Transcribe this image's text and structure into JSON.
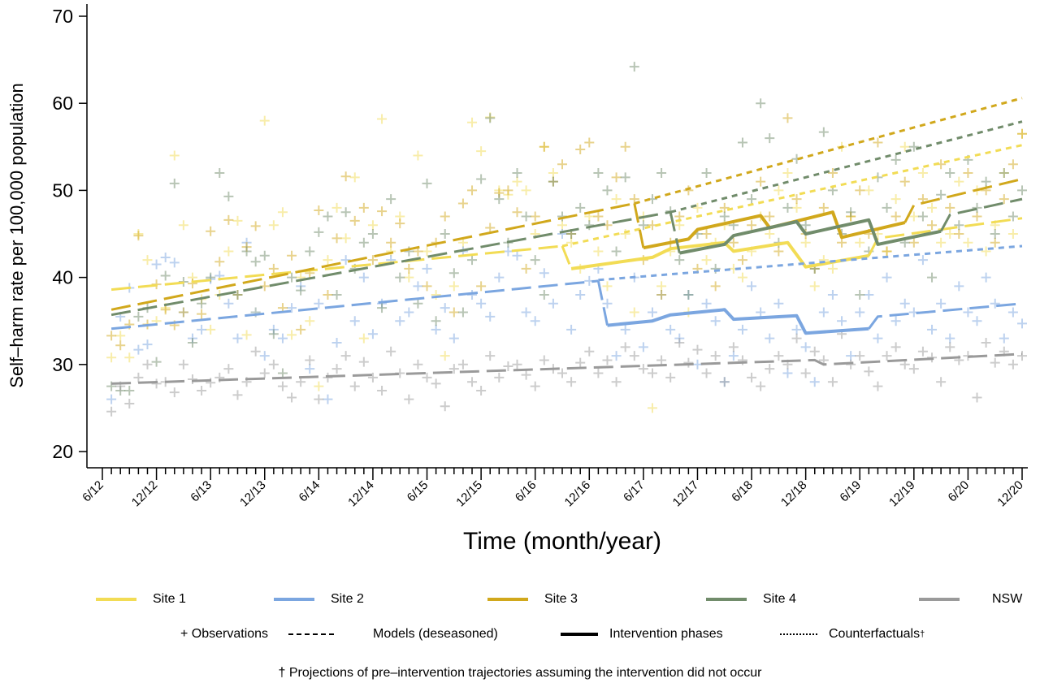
{
  "chart_data": {
    "type": "line",
    "xlabel": "Time (month/year)",
    "ylabel": "Self–harm rate per 100,000 population",
    "ylim": [
      20,
      70
    ],
    "xlim": [
      "2012-06",
      "2020-12"
    ],
    "yticks": [
      "20",
      "30",
      "40",
      "50",
      "60",
      "70"
    ],
    "xticks": [
      "6/12",
      "12/12",
      "6/13",
      "12/13",
      "6/14",
      "12/14",
      "6/15",
      "12/15",
      "6/16",
      "12/16",
      "6/17",
      "12/17",
      "6/18",
      "12/18",
      "6/19",
      "12/19",
      "6/20",
      "12/20"
    ],
    "minor_ticks": "monthly",
    "grid": false,
    "legend_position": "bottom",
    "series": [
      {
        "name": "Site 1",
        "color": "#F2DC55",
        "observations": {
          "start": "2012-07",
          "values": [
            30.8,
            33.3,
            30.8,
            45,
            42,
            35,
            36.5,
            54,
            46,
            40,
            37.5,
            34,
            38,
            43,
            46.5,
            33.4,
            36,
            58,
            46,
            47.5,
            33.4,
            40,
            35,
            27.5,
            42,
            48,
            44.5,
            51.5,
            33,
            46,
            58.2,
            43,
            47,
            40,
            54,
            43,
            38,
            31,
            39,
            44,
            57.8,
            54.5,
            58.4,
            50,
            49.5,
            51,
            50,
            45,
            55,
            52,
            46,
            44,
            41,
            47,
            43,
            39,
            49,
            45,
            36,
            47,
            25,
            39,
            43,
            46,
            36,
            48,
            42,
            44,
            46,
            41,
            40,
            43,
            47,
            45,
            50,
            52,
            48,
            44,
            39,
            42,
            41,
            55,
            47,
            44,
            50,
            45,
            43,
            49,
            55,
            47,
            52,
            48,
            44,
            45,
            51,
            44,
            50,
            43,
            46,
            52,
            45,
            56.5
          ]
        },
        "model_pre": [
          [
            "2012-07",
            38.6
          ],
          [
            "2016-09",
            43.6
          ]
        ],
        "intervention": [
          [
            "2016-10",
            41.0
          ],
          [
            "2017-07",
            42.3
          ],
          [
            "2017-09",
            43.3
          ],
          [
            "2018-03",
            44.0
          ],
          [
            "2018-04",
            43.0
          ],
          [
            "2018-10",
            44.0
          ],
          [
            "2018-12",
            41.2
          ],
          [
            "2019-07",
            42.5
          ]
        ],
        "model_post": [
          [
            "2019-08",
            44.5
          ],
          [
            "2020-12",
            46.8
          ]
        ],
        "counterfactual": [
          [
            "2016-09",
            43.6
          ],
          [
            "2020-12",
            55.2
          ]
        ]
      },
      {
        "name": "Site 2",
        "color": "#7BA6E0",
        "observations": {
          "start": "2012-07",
          "values": [
            26,
            35.5,
            38.8,
            31.7,
            32.3,
            41.5,
            42.3,
            41.7,
            36,
            33,
            34,
            39.8,
            40.2,
            37,
            33,
            44,
            36,
            31,
            34,
            33,
            36.5,
            39,
            29.5,
            37,
            26,
            32.5,
            42,
            35,
            40,
            33.5,
            37,
            42,
            35,
            36,
            39,
            41,
            34,
            36.5,
            33,
            43,
            38,
            37,
            35.5,
            40,
            43,
            42.5,
            36,
            35,
            40.5,
            37,
            45,
            34,
            38,
            39.6,
            41,
            37,
            31,
            34,
            40,
            32,
            36,
            38,
            34,
            33,
            38,
            30,
            37,
            35,
            28,
            31,
            34,
            39,
            36,
            33,
            37,
            29,
            34,
            32,
            28,
            36,
            38,
            35,
            31,
            36,
            38,
            33,
            40,
            35,
            37,
            36,
            42,
            34,
            37,
            33,
            39,
            36,
            35,
            40,
            37,
            33,
            36,
            34.7
          ]
        },
        "model_pre": [
          [
            "2012-07",
            34.1
          ],
          [
            "2017-01",
            39.6
          ]
        ],
        "intervention": [
          [
            "2017-02",
            34.5
          ],
          [
            "2017-07",
            35.0
          ],
          [
            "2017-09",
            35.7
          ],
          [
            "2018-03",
            36.3
          ],
          [
            "2018-04",
            35.2
          ],
          [
            "2018-11",
            35.6
          ],
          [
            "2018-12",
            33.6
          ],
          [
            "2019-07",
            34.1
          ]
        ],
        "model_post": [
          [
            "2019-08",
            35.5
          ],
          [
            "2020-12",
            37.0
          ]
        ],
        "counterfactual": [
          [
            "2017-01",
            39.7
          ],
          [
            "2020-12",
            43.6
          ]
        ]
      },
      {
        "name": "Site 3",
        "color": "#D1A81C",
        "observations": {
          "start": "2012-07",
          "values": [
            33.3,
            32.2,
            34.6,
            44.8,
            34.6,
            39.2,
            36.3,
            34.5,
            36,
            39.3,
            35.8,
            45.3,
            41.8,
            46.6,
            38,
            43.5,
            45.9,
            39,
            41,
            36.5,
            42.5,
            34,
            40.5,
            47.7,
            38,
            44.5,
            51.6,
            46.5,
            48,
            42,
            47.6,
            44,
            46.2,
            41,
            43,
            39,
            44,
            47,
            36,
            48.5,
            50,
            39,
            45.7,
            49.7,
            50,
            47.5,
            41,
            47,
            55,
            51,
            53,
            45,
            54.7,
            55.5,
            47,
            46,
            51.5,
            55,
            49,
            42,
            46,
            38,
            44,
            47,
            50,
            41,
            45,
            39,
            48,
            44,
            42,
            46,
            51,
            47,
            43,
            58.3,
            49,
            45,
            41,
            48,
            52,
            44,
            47,
            50,
            45,
            55.5,
            43,
            47,
            51,
            44,
            49,
            46,
            53,
            48,
            45,
            52,
            47,
            50,
            44,
            49,
            53,
            56.5
          ]
        },
        "model_pre": [
          [
            "2012-07",
            36.3
          ],
          [
            "2017-05",
            48.5
          ]
        ],
        "intervention": [
          [
            "2017-06",
            43.4
          ],
          [
            "2017-11",
            44.4
          ],
          [
            "2017-12",
            45.5
          ],
          [
            "2018-07",
            47.1
          ],
          [
            "2018-08",
            45.7
          ],
          [
            "2019-03",
            47.5
          ],
          [
            "2019-04",
            44.6
          ],
          [
            "2019-11",
            46.3
          ]
        ],
        "model_post": [
          [
            "2019-12",
            48.3
          ],
          [
            "2020-12",
            51.3
          ]
        ],
        "counterfactual": [
          [
            "2017-05",
            48.5
          ],
          [
            "2020-12",
            60.6
          ]
        ]
      },
      {
        "name": "Site 4",
        "color": "#718C6B",
        "observations": {
          "start": "2012-07",
          "values": [
            27.5,
            27,
            27,
            35.5,
            36.5,
            30.3,
            40.2,
            50.8,
            39.5,
            32.5,
            37,
            40,
            52,
            49.3,
            38,
            43,
            41.8,
            42.5,
            33.5,
            29,
            40,
            38.5,
            43,
            45.2,
            47,
            38,
            47.5,
            41,
            44,
            45,
            36.5,
            49,
            40,
            43,
            37,
            50.8,
            35,
            45,
            40.5,
            36,
            42,
            51.3,
            58.3,
            49,
            44,
            52,
            47,
            42,
            38,
            51,
            47,
            45,
            48,
            46,
            52,
            50,
            43,
            51.5,
            64.2,
            46,
            49,
            52,
            47.6,
            42,
            38,
            45,
            52,
            41,
            47,
            46,
            55.5,
            49,
            60,
            56,
            44,
            48,
            53.6,
            46,
            41,
            56.7,
            50,
            45,
            47.5,
            38,
            43,
            51.5,
            48,
            53.5,
            44,
            55,
            47,
            40,
            49.5,
            52,
            46,
            53.5,
            48,
            51,
            45,
            52,
            47,
            50
          ]
        },
        "model_pre": [
          [
            "2012-07",
            35.7
          ],
          [
            "2017-09",
            47.5
          ]
        ],
        "intervention": [
          [
            "2017-10",
            42.8
          ],
          [
            "2018-03",
            43.8
          ],
          [
            "2018-04",
            44.8
          ],
          [
            "2018-11",
            46.4
          ],
          [
            "2018-12",
            45.0
          ],
          [
            "2019-07",
            46.6
          ],
          [
            "2019-08",
            43.8
          ],
          [
            "2020-03",
            45.3
          ]
        ],
        "model_post": [
          [
            "2020-04",
            47.2
          ],
          [
            "2020-12",
            49.0
          ]
        ],
        "counterfactual": [
          [
            "2017-09",
            47.5
          ],
          [
            "2020-12",
            57.9
          ]
        ]
      },
      {
        "name": "NSW",
        "color": "#9A9A9A",
        "observations": {
          "start": "2012-07",
          "values": [
            24.6,
            27.5,
            25.5,
            28.5,
            30,
            27.8,
            28,
            26.8,
            30,
            28.3,
            27,
            27.9,
            28.5,
            29.5,
            26.5,
            28,
            31.5,
            29,
            30,
            27.5,
            26.2,
            28,
            30.5,
            26,
            28.5,
            29.5,
            31,
            27.5,
            30.3,
            28.5,
            27,
            31.5,
            29,
            26,
            30,
            28.5,
            27.8,
            25.2,
            29.5,
            30,
            28,
            27,
            31,
            28.5,
            29.8,
            30,
            28.8,
            27.5,
            30.5,
            29.5,
            29,
            28,
            30.2,
            31.5,
            29,
            30.5,
            28,
            32,
            31,
            29.5,
            29,
            30.5,
            28.5,
            32.5,
            30.2,
            31.7,
            29,
            31,
            28,
            32,
            30.5,
            28.5,
            27.5,
            29.5,
            31,
            30,
            33,
            29,
            31.5,
            30.5,
            28,
            33.5,
            30,
            31,
            29.2,
            27.5,
            31,
            32,
            30,
            29.5,
            31.5,
            30.8,
            28,
            32,
            30.5,
            31,
            26.2,
            32.5,
            30.2,
            31.5,
            30,
            31
          ]
        },
        "model_pre": [
          [
            "2012-07",
            27.8
          ],
          [
            "2019-01",
            30.5
          ],
          [
            "2019-02",
            30.0
          ],
          [
            "2020-12",
            31.2
          ]
        ]
      }
    ]
  },
  "legend": {
    "sites": [
      "Site 1",
      "Site 2",
      "Site 3",
      "Site 4",
      "NSW"
    ],
    "observations_label": "+ Observations",
    "models_label": "Models (deseasoned)",
    "intervention_label": "Intervention phases",
    "counterfactuals_label": "Counterfactuals",
    "dagger": "†"
  },
  "footnote": "† Projections of pre–intervention trajectories assuming the intervention did not occur"
}
